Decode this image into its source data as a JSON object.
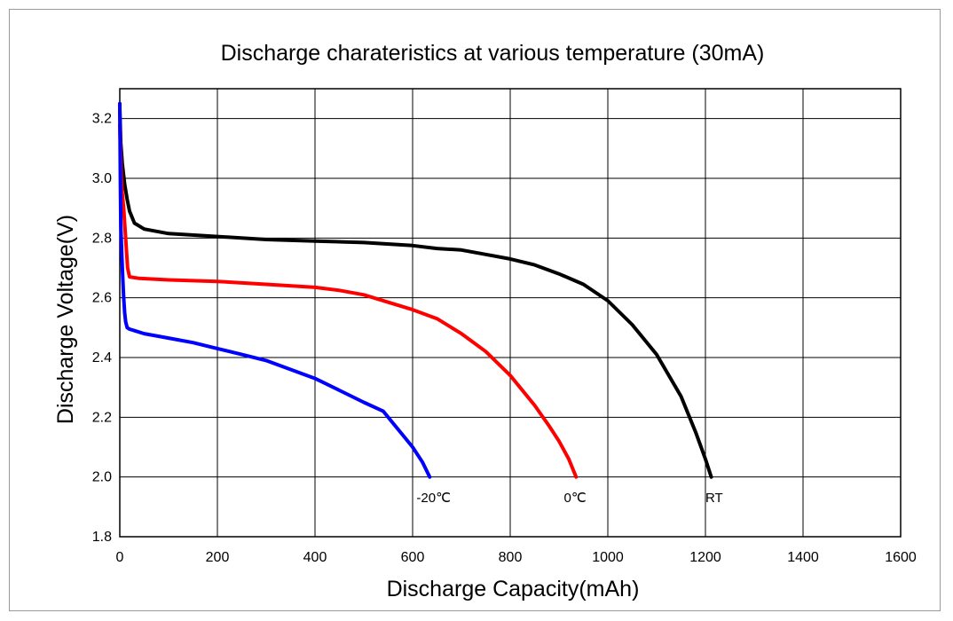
{
  "chart_data": {
    "type": "line",
    "title": "Discharge charateristics at various temperature (30mA)",
    "xlabel": "Discharge Capacity(mAh)",
    "ylabel": "Discharge Voltage(V)",
    "xlim": [
      0,
      1600
    ],
    "ylim": [
      1.8,
      3.3
    ],
    "xticks": [
      0,
      200,
      400,
      600,
      800,
      1000,
      1200,
      1400,
      1600
    ],
    "xtick_labels": [
      "0",
      "200",
      "400",
      "600",
      "800",
      "1000",
      "1200",
      "1400",
      "1600"
    ],
    "yticks": [
      1.8,
      2.0,
      2.2,
      2.4,
      2.6,
      2.8,
      3.0,
      3.2
    ],
    "ytick_labels": [
      "1.8",
      "2.0",
      "2.2",
      "2.4",
      "2.6",
      "2.8",
      "3.0",
      "3.2"
    ],
    "grid": true,
    "legend": "none",
    "series": [
      {
        "name": "RT",
        "color": "#000000",
        "x": [
          0,
          2,
          5,
          10,
          15,
          20,
          30,
          50,
          100,
          200,
          300,
          400,
          500,
          600,
          650,
          700,
          750,
          800,
          850,
          900,
          950,
          1000,
          1050,
          1100,
          1150,
          1180,
          1200,
          1212
        ],
        "y": [
          3.23,
          3.12,
          3.05,
          2.98,
          2.93,
          2.89,
          2.85,
          2.83,
          2.815,
          2.805,
          2.795,
          2.79,
          2.785,
          2.775,
          2.765,
          2.76,
          2.745,
          2.73,
          2.71,
          2.68,
          2.645,
          2.59,
          2.51,
          2.41,
          2.27,
          2.15,
          2.06,
          2.0
        ]
      },
      {
        "name": "0℃",
        "color": "#ff0000",
        "x": [
          0,
          3,
          5,
          8,
          10,
          12,
          14,
          16,
          20,
          40,
          100,
          200,
          300,
          400,
          450,
          500,
          550,
          600,
          650,
          700,
          750,
          800,
          850,
          880,
          900,
          920,
          935
        ],
        "y": [
          3.18,
          3.0,
          2.95,
          2.9,
          2.85,
          2.8,
          2.75,
          2.7,
          2.67,
          2.665,
          2.66,
          2.655,
          2.645,
          2.635,
          2.625,
          2.61,
          2.585,
          2.56,
          2.53,
          2.48,
          2.42,
          2.34,
          2.24,
          2.17,
          2.12,
          2.06,
          2.0
        ]
      },
      {
        "name": "-20℃",
        "color": "#0000ff",
        "x": [
          0,
          1,
          2,
          4,
          6,
          8,
          10,
          12,
          15,
          20,
          30,
          50,
          100,
          150,
          200,
          250,
          300,
          350,
          400,
          450,
          500,
          540,
          560,
          580,
          600,
          620,
          635
        ],
        "y": [
          3.25,
          3.0,
          2.85,
          2.75,
          2.67,
          2.6,
          2.55,
          2.52,
          2.5,
          2.495,
          2.49,
          2.48,
          2.465,
          2.45,
          2.43,
          2.41,
          2.39,
          2.36,
          2.33,
          2.29,
          2.25,
          2.22,
          2.18,
          2.14,
          2.1,
          2.05,
          2.0
        ]
      }
    ],
    "annotations": [
      {
        "text": "-20℃",
        "x": 608,
        "y": 1.93
      },
      {
        "text": "0℃",
        "x": 910,
        "y": 1.93
      },
      {
        "text": "RT",
        "x": 1200,
        "y": 1.93
      }
    ]
  }
}
